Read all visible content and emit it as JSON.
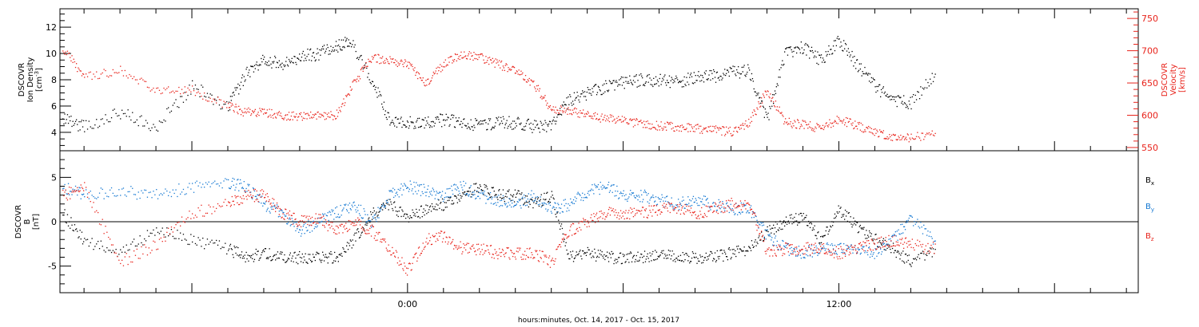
{
  "footer": {
    "time_label": "hours:minutes, Oct. 14, 2017 - Oct. 15, 2017"
  },
  "x_ticks": [
    {
      "label": "0:00",
      "x": 0
    },
    {
      "label": "12:00",
      "x": 12
    }
  ],
  "colors": {
    "black": "#000000",
    "red": "#e8231b",
    "blue": "#1478d2"
  },
  "chart_data": [
    {
      "type": "scatter",
      "panel": "top",
      "ylabel_left": [
        "DSCOVR",
        "Ion Density",
        "[cm^-3]"
      ],
      "ylabel_right": [
        "DSCOVR",
        "Velocity",
        "[km/s]"
      ],
      "xlim": [
        -9.67,
        20.33
      ],
      "ylim_left": [
        2.6,
        13.4
      ],
      "ylim_right": [
        545,
        765
      ],
      "yticks_left": [
        4,
        6,
        8,
        10,
        12
      ],
      "yticks_right": [
        550,
        600,
        650,
        700,
        750
      ],
      "series": [
        {
          "axis": "left",
          "color": "black",
          "x": [
            -9.6,
            -9.0,
            -8.0,
            -7.0,
            -6.0,
            -5.0,
            -4.5,
            -4.0,
            -3.5,
            -3.0,
            -2.5,
            -2.0,
            -1.6,
            -1.0,
            -0.5,
            0.0,
            0.5,
            1.0,
            1.5,
            2.0,
            2.5,
            3.0,
            3.5,
            4.0,
            4.5,
            5.0,
            5.5,
            6.0,
            6.5,
            7.0,
            7.5,
            8.0,
            8.5,
            9.0,
            9.5,
            10.0,
            10.5,
            11.0,
            11.5,
            12.0,
            12.5,
            13.0,
            13.5,
            14.0,
            14.7
          ],
          "y": [
            5.0,
            4.5,
            5.5,
            4.5,
            7.5,
            6.0,
            8.5,
            9.5,
            9.3,
            9.8,
            10.0,
            10.5,
            11.0,
            8.0,
            5.0,
            4.8,
            4.7,
            5.0,
            4.8,
            4.6,
            4.8,
            4.7,
            4.5,
            4.6,
            6.5,
            7.0,
            7.5,
            7.8,
            8.0,
            8.0,
            7.9,
            8.2,
            8.3,
            8.6,
            8.7,
            5.0,
            10.0,
            10.5,
            9.5,
            11.0,
            9.2,
            7.5,
            6.5,
            6.3,
            8.5
          ]
        },
        {
          "axis": "right",
          "color": "red",
          "x": [
            -9.6,
            -9.0,
            -8.0,
            -7.0,
            -6.0,
            -5.0,
            -4.5,
            -4.0,
            -3.5,
            -3.0,
            -2.5,
            -2.0,
            -1.5,
            -1.0,
            -0.5,
            0.0,
            0.5,
            1.0,
            1.5,
            2.0,
            2.5,
            3.0,
            3.5,
            4.0,
            4.5,
            5.0,
            5.5,
            6.0,
            6.5,
            7.0,
            7.5,
            8.0,
            8.5,
            9.0,
            9.5,
            10.0,
            10.5,
            11.0,
            11.5,
            12.0,
            12.5,
            13.0,
            13.5,
            14.0,
            14.7
          ],
          "y": [
            705,
            660,
            670,
            640,
            640,
            615,
            605,
            605,
            600,
            600,
            600,
            600,
            650,
            690,
            685,
            680,
            650,
            680,
            695,
            690,
            680,
            670,
            650,
            610,
            608,
            600,
            596,
            592,
            588,
            584,
            582,
            580,
            578,
            575,
            590,
            640,
            590,
            586,
            580,
            595,
            584,
            575,
            566,
            566,
            571
          ]
        }
      ]
    },
    {
      "type": "scatter",
      "panel": "bottom",
      "ylabel_left": [
        "DSCOVR",
        "B",
        "[nT]"
      ],
      "xlim": [
        -9.67,
        20.33
      ],
      "ylim": [
        -8,
        8
      ],
      "yticks": [
        -5,
        0,
        5
      ],
      "zero_line": true,
      "legend_position": "right",
      "series": [
        {
          "name": "B",
          "subscript": "x",
          "color": "black",
          "x": [
            -9.6,
            -9.0,
            -8.0,
            -7.0,
            -6.0,
            -5.0,
            -4.5,
            -4.0,
            -3.5,
            -3.0,
            -2.5,
            -2.0,
            -1.5,
            -1.0,
            -0.5,
            0.0,
            0.5,
            1.0,
            1.5,
            2.0,
            2.5,
            3.0,
            3.5,
            4.0,
            4.5,
            5.0,
            5.5,
            6.0,
            6.5,
            7.0,
            7.5,
            8.0,
            8.5,
            9.0,
            9.5,
            10.0,
            10.5,
            11.0,
            11.5,
            12.0,
            12.5,
            13.0,
            13.5,
            14.0,
            14.7
          ],
          "y": [
            1.0,
            -2.0,
            -3.5,
            -1.0,
            -2.0,
            -3.0,
            -4.0,
            -3.5,
            -4.0,
            -4.0,
            -4.0,
            -4.0,
            -2.0,
            1.0,
            2.0,
            0.5,
            1.5,
            2.0,
            3.0,
            4.0,
            3.0,
            3.0,
            2.0,
            3.0,
            -4.0,
            -3.5,
            -4.0,
            -4.0,
            -4.0,
            -3.5,
            -4.0,
            -4.0,
            -4.0,
            -3.5,
            -3.0,
            -1.0,
            0.0,
            0.5,
            -2.0,
            1.5,
            -0.5,
            -2.0,
            -3.0,
            -4.5,
            -3.0
          ]
        },
        {
          "name": "B",
          "subscript": "y",
          "color": "blue",
          "x": [
            -9.6,
            -9.0,
            -8.0,
            -7.0,
            -6.0,
            -5.0,
            -4.5,
            -4.0,
            -3.5,
            -3.0,
            -2.5,
            -2.0,
            -1.5,
            -1.0,
            -0.5,
            0.0,
            0.5,
            1.0,
            1.5,
            2.0,
            2.5,
            3.0,
            3.5,
            4.0,
            4.5,
            5.0,
            5.5,
            6.0,
            6.5,
            7.0,
            7.5,
            8.0,
            8.5,
            9.0,
            9.5,
            10.0,
            10.5,
            11.0,
            11.5,
            12.0,
            12.5,
            13.0,
            13.5,
            14.0,
            14.7
          ],
          "y": [
            4.0,
            3.0,
            3.5,
            3.0,
            4.0,
            4.5,
            4.0,
            2.0,
            1.0,
            -1.0,
            0.0,
            1.0,
            2.0,
            0.0,
            3.0,
            4.0,
            3.5,
            3.0,
            4.0,
            3.0,
            2.5,
            2.0,
            3.0,
            1.5,
            2.0,
            3.5,
            4.0,
            3.0,
            3.0,
            2.5,
            2.0,
            2.5,
            2.0,
            1.5,
            1.5,
            -1.5,
            -3.0,
            -3.5,
            -3.0,
            -3.0,
            -3.0,
            -3.5,
            -2.0,
            0.5,
            -2.5
          ]
        },
        {
          "name": "B",
          "subscript": "z",
          "color": "red",
          "x": [
            -9.6,
            -9.0,
            -8.0,
            -7.0,
            -6.0,
            -5.0,
            -4.5,
            -4.0,
            -3.5,
            -3.0,
            -2.5,
            -2.0,
            -1.5,
            -1.0,
            -0.5,
            0.0,
            0.5,
            1.0,
            1.5,
            2.0,
            2.5,
            3.0,
            3.5,
            4.0,
            4.5,
            5.0,
            5.5,
            6.0,
            6.5,
            7.0,
            7.5,
            8.0,
            8.5,
            9.0,
            9.5,
            10.0,
            10.5,
            11.0,
            11.5,
            12.0,
            12.5,
            13.0,
            13.5,
            14.0,
            14.7
          ],
          "y": [
            3.0,
            4.0,
            -4.5,
            -2.5,
            1.0,
            2.0,
            3.0,
            3.0,
            1.0,
            0.0,
            0.5,
            -1.0,
            0.0,
            -1.0,
            -3.0,
            -5.5,
            -2.0,
            -1.5,
            -3.0,
            -3.0,
            -3.5,
            -3.5,
            -3.5,
            -4.5,
            -1.0,
            0.0,
            1.0,
            1.0,
            1.0,
            1.5,
            1.5,
            1.0,
            1.5,
            2.0,
            2.0,
            -3.5,
            -3.0,
            -3.0,
            -3.0,
            -3.5,
            -3.0,
            -2.5,
            -2.0,
            -2.5,
            -3.0
          ]
        }
      ]
    }
  ]
}
